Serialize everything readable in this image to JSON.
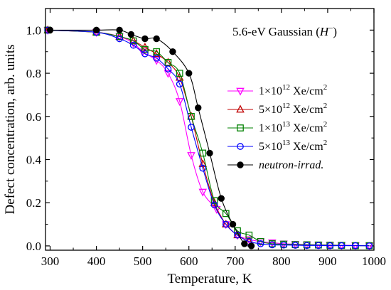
{
  "chart_data": {
    "type": "line",
    "xlabel": "Temperature, K",
    "ylabel": "Defect concentration, arb. units",
    "xlim": [
      290,
      1000
    ],
    "ylim": [
      -0.02,
      1.1
    ],
    "xticks": [
      300,
      400,
      500,
      600,
      700,
      800,
      900,
      1000
    ],
    "xtick_labels": [
      "300",
      "400",
      "500",
      "600",
      "700",
      "800",
      "900",
      "1000"
    ],
    "yticks": [
      0.0,
      0.2,
      0.4,
      0.6,
      0.8,
      1.0
    ],
    "ytick_labels": [
      "0.0",
      "0.2",
      "0.4",
      "0.6",
      "0.8",
      "1.0"
    ],
    "annotation": {
      "prefix": "5.6-eV Gaussian (",
      "italic": "H",
      "superscript": "−",
      "suffix": ")"
    },
    "legend_position": "right",
    "series": [
      {
        "name_parts": {
          "mantissa": "1×10",
          "exp": "12",
          "unit": " Xe/cm",
          "unit_exp": "2"
        },
        "color": "#ff00ff",
        "marker": "triangle-down",
        "x": [
          295,
          400,
          450,
          480,
          500,
          530,
          555,
          580,
          605,
          630,
          660,
          680,
          705,
          730,
          755,
          780,
          805,
          830,
          855,
          880,
          905,
          930,
          960,
          990
        ],
        "y": [
          1.0,
          0.99,
          0.97,
          0.94,
          0.9,
          0.86,
          0.8,
          0.67,
          0.42,
          0.25,
          0.17,
          0.1,
          0.05,
          0.03,
          0.02,
          0.015,
          0.01,
          0.008,
          0.006,
          0.005,
          0.004,
          0.003,
          0.002,
          0.001
        ]
      },
      {
        "name_parts": {
          "mantissa": "5×10",
          "exp": "12",
          "unit": " Xe/cm",
          "unit_exp": "2"
        },
        "color": "#c00000",
        "marker": "triangle-up",
        "x": [
          295,
          400,
          450,
          480,
          505,
          530,
          555,
          580,
          605,
          630,
          655,
          680,
          705,
          730
        ],
        "y": [
          1.0,
          0.99,
          0.97,
          0.95,
          0.92,
          0.89,
          0.85,
          0.78,
          0.6,
          0.38,
          0.2,
          0.1,
          0.05,
          0.02
        ]
      },
      {
        "name_parts": {
          "mantissa": "1×10",
          "exp": "13",
          "unit": " Xe/cm",
          "unit_exp": "2"
        },
        "color": "#008000",
        "marker": "square",
        "x": [
          295,
          400,
          450,
          480,
          505,
          530,
          555,
          580,
          605,
          630,
          655,
          680,
          705,
          730,
          755,
          780,
          805,
          830,
          855,
          880,
          905,
          930,
          960,
          990
        ],
        "y": [
          1.0,
          0.99,
          0.97,
          0.95,
          0.91,
          0.9,
          0.85,
          0.8,
          0.6,
          0.43,
          0.21,
          0.15,
          0.07,
          0.05,
          0.02,
          0.01,
          0.008,
          0.006,
          0.005,
          0.004,
          0.003,
          0.002,
          0.001,
          0.001
        ]
      },
      {
        "name_parts": {
          "mantissa": "5×10",
          "exp": "13",
          "unit": " Xe/cm",
          "unit_exp": "2"
        },
        "color": "#0000ff",
        "marker": "circle",
        "x": [
          295,
          400,
          450,
          480,
          505,
          530,
          555,
          580,
          605,
          630,
          655,
          680,
          705,
          730,
          755,
          780,
          805,
          830,
          855,
          880,
          905,
          930,
          960,
          990
        ],
        "y": [
          1.0,
          0.99,
          0.96,
          0.93,
          0.89,
          0.87,
          0.82,
          0.75,
          0.55,
          0.36,
          0.19,
          0.1,
          0.05,
          0.02,
          0.01,
          0.005,
          0.004,
          0.003,
          0.002,
          0.002,
          0.001,
          0.001,
          0.001,
          0.0
        ]
      },
      {
        "name": "neutron-irrad.",
        "color": "#000000",
        "marker": "filled-circle",
        "x": [
          300,
          400,
          450,
          475,
          505,
          530,
          565,
          600,
          620,
          645,
          670,
          695,
          720,
          735
        ],
        "y": [
          1.0,
          1.0,
          1.0,
          0.98,
          0.96,
          0.96,
          0.9,
          0.8,
          0.64,
          0.43,
          0.22,
          0.1,
          0.01,
          0.0
        ]
      }
    ]
  }
}
